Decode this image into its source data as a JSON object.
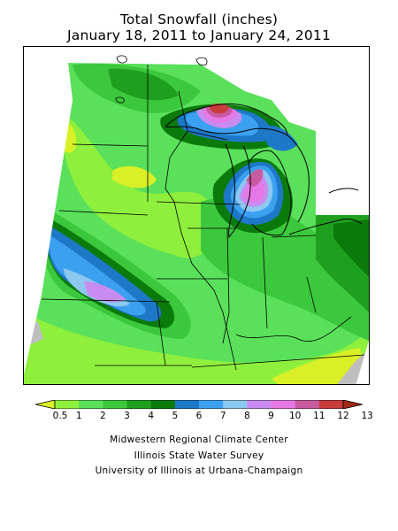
{
  "title_line1": "Total Snowfall (inches)",
  "title_line2": "January 18, 2011 to January 24, 2011",
  "legend": {
    "ticks": [
      "0.5",
      "1",
      "2",
      "3",
      "4",
      "5",
      "6",
      "7",
      "8",
      "9",
      "10",
      "11",
      "12",
      "13"
    ],
    "colors": [
      "#d9f026",
      "#8ef03c",
      "#5ae05a",
      "#3cc83c",
      "#1ea01e",
      "#0a7a0a",
      "#1e78c8",
      "#3ca0f0",
      "#8cc8f0",
      "#c88cf0",
      "#e678e6",
      "#c85aa0",
      "#c83c3c",
      "#a02814"
    ]
  },
  "map_colors": {
    "very_light": "#d9f026",
    "light_green": "#8ef03c",
    "green": "#5ae05a",
    "mid_green": "#3cc83c",
    "dark_green": "#1ea01e",
    "deep_green": "#0a7a0a",
    "blue": "#1e78c8",
    "sky": "#3ca0f0",
    "pale_blue": "#8cc8f0",
    "lavender": "#c88cf0",
    "magenta": "#e678e6",
    "rose": "#c85aa0",
    "red": "#c83c3c",
    "gray": "#bebebe"
  },
  "credits": [
    "Midwestern Regional Climate Center",
    "Illinois State Water Survey",
    "University of Illinois at Urbana-Champaign"
  ]
}
